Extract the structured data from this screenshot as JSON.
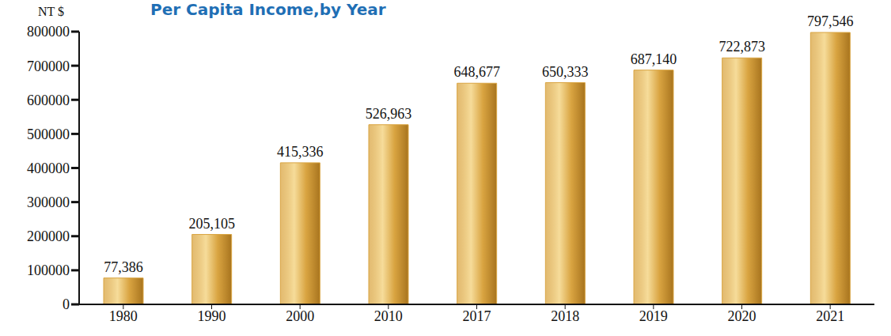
{
  "chart_data": {
    "type": "bar",
    "title": "Per Capita Income,by Year",
    "y_label": "NT $",
    "categories": [
      "1980",
      "1990",
      "2000",
      "2010",
      "2017",
      "2018",
      "2019",
      "2020",
      "2021"
    ],
    "values": [
      77386,
      205105,
      415336,
      526963,
      648677,
      650333,
      687140,
      722873,
      797546
    ],
    "value_labels": [
      "77,386",
      "205,105",
      "415,336",
      "526,963",
      "648,677",
      "650,333",
      "687,140",
      "722,873",
      "797,546"
    ],
    "color": "#d9a441",
    "ylim": [
      0,
      800000
    ],
    "yticks": [
      0,
      100000,
      200000,
      300000,
      400000,
      500000,
      600000,
      700000,
      800000
    ],
    "data_labels": true,
    "grid": false
  }
}
